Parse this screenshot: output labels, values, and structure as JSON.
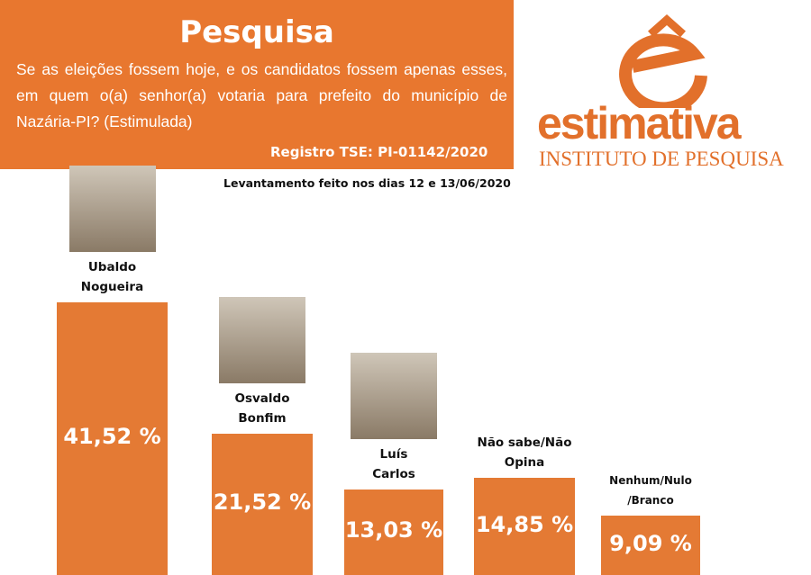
{
  "header": {
    "title": "Pesquisa",
    "question": "Se as eleições fossem hoje, e os candidatos fossem apenas esses, em quem o(a) senhor(a) votaria para prefeito do município de Nazária-PI? (Estimulada)",
    "registro": "Registro TSE: PI-01142/2020",
    "levantamento": "Levantamento feito nos dias 12 e 13/06/2020"
  },
  "logo": {
    "name": "estimativa",
    "tagline": "INSTITUTO DE PESQUISA"
  },
  "chart_data": {
    "type": "bar",
    "categories": [
      "Ubaldo Nogueira",
      "Osvaldo Bonfim",
      "Luís Carlos",
      "Não sabe/Não Opina",
      "Nenhum/Nulo /Branco"
    ],
    "values": [
      41.52,
      21.52,
      13.03,
      14.85,
      9.09
    ],
    "value_labels": [
      "41,52 %",
      "21,52 %",
      "13,03 %",
      "14,85 %",
      "9,09 %"
    ],
    "color": "#e47a34"
  }
}
